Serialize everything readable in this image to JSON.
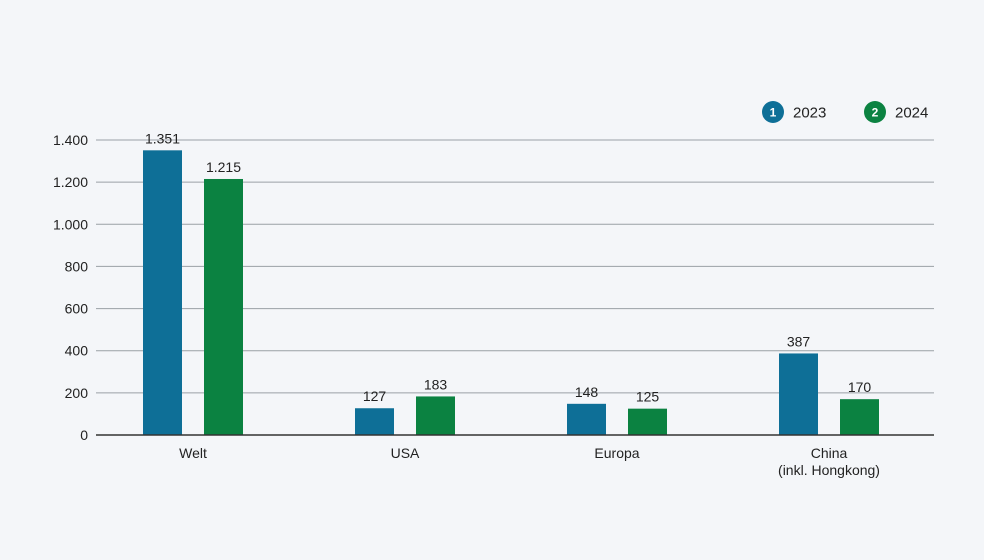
{
  "chart_data": {
    "type": "bar",
    "categories": [
      {
        "lines": [
          "Welt"
        ]
      },
      {
        "lines": [
          "USA"
        ]
      },
      {
        "lines": [
          "Europa"
        ]
      },
      {
        "lines": [
          "China",
          "(inkl. Hongkong)"
        ]
      }
    ],
    "series": [
      {
        "name": "2023",
        "marker": "1",
        "color": "#0e6f97",
        "values": [
          1351,
          127,
          148,
          387
        ],
        "labels": [
          "1.351",
          "127",
          "148",
          "387"
        ]
      },
      {
        "name": "2024",
        "marker": "2",
        "color": "#0b8241",
        "values": [
          1215,
          183,
          125,
          170
        ],
        "labels": [
          "1.215",
          "183",
          "125",
          "170"
        ]
      }
    ],
    "yticks": [
      {
        "value": 0,
        "label": "0"
      },
      {
        "value": 200,
        "label": "200"
      },
      {
        "value": 400,
        "label": "400"
      },
      {
        "value": 600,
        "label": "600"
      },
      {
        "value": 800,
        "label": "800"
      },
      {
        "value": 1000,
        "label": "1.000"
      },
      {
        "value": 1200,
        "label": "1.200"
      },
      {
        "value": 1400,
        "label": "1.400"
      }
    ],
    "ylim": [
      0,
      1400
    ],
    "grid": true,
    "legend_position": "top-right",
    "gridline_color": "#9aa0a6",
    "axis_color": "#333333"
  }
}
